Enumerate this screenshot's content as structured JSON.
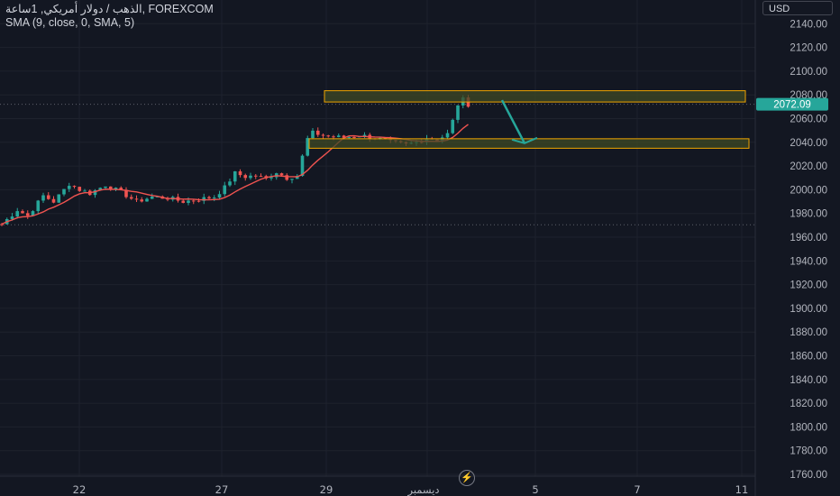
{
  "legend": {
    "line1": "الذهب / دولار أمريكي, 1ساعة, FOREXCOM",
    "line2": "SMA (9, close, 0, SMA, 5)"
  },
  "currency_label": "USD",
  "colors": {
    "background": "#131722",
    "up": "#26a69a",
    "down": "#ef5350",
    "sma": "#ef5350",
    "zone_border": "#f0a500",
    "zone_fill": "#3f4a24",
    "arrow": "#26a69a",
    "grid": "#1e222d",
    "axis_text": "#b2b5be"
  },
  "chart_data": {
    "type": "candlestick",
    "y_axis_ticks": [
      2140,
      2120,
      2100,
      2080,
      2060,
      2040,
      2020,
      2000,
      1980,
      1960,
      1940,
      1920,
      1900,
      1880,
      1860,
      1840,
      1820,
      1800,
      1780,
      1760
    ],
    "y_tick_labels": [
      "2140.00",
      "2120.00",
      "2100.00",
      "2080.00",
      "2060.00",
      "2040.00",
      "2020.00",
      "2000.00",
      "1980.00",
      "1960.00",
      "1940.00",
      "1920.00",
      "1900.00",
      "1880.00",
      "1860.00",
      "1840.00",
      "1820.00",
      "1800.00",
      "1780.00",
      "1760.00"
    ],
    "ylim": [
      1758.5,
      2160
    ],
    "x_tick_labels": [
      "22",
      "27",
      "29",
      "ديسمبر",
      "5",
      "7",
      "11"
    ],
    "current_price": "2072.09",
    "current_price_value": 2072.09,
    "reference_low": 1970.5,
    "close_path": [
      [
        0,
        1971
      ],
      [
        3,
        1983
      ],
      [
        5,
        1978
      ],
      [
        8,
        1995
      ],
      [
        10,
        1990
      ],
      [
        13,
        2005
      ],
      [
        15,
        2000
      ],
      [
        17,
        1997
      ],
      [
        20,
        2004
      ],
      [
        23,
        1998
      ],
      [
        26,
        1990
      ],
      [
        29,
        1994
      ],
      [
        32,
        1993
      ],
      [
        35,
        1990
      ],
      [
        38,
        1992
      ],
      [
        41,
        1994
      ],
      [
        43,
        2002
      ],
      [
        45,
        2014
      ],
      [
        47,
        2011
      ],
      [
        49,
        2012
      ],
      [
        51,
        2009
      ],
      [
        53,
        2015
      ],
      [
        55,
        2010
      ],
      [
        57,
        2012
      ],
      [
        58,
        2028
      ],
      [
        59,
        2043
      ],
      [
        60,
        2048
      ],
      [
        63,
        2045
      ],
      [
        66,
        2044
      ],
      [
        69,
        2046
      ],
      [
        72,
        2044
      ],
      [
        75,
        2040
      ],
      [
        78,
        2038
      ],
      [
        80,
        2040
      ],
      [
        82,
        2044
      ],
      [
        84,
        2042
      ],
      [
        86,
        2047
      ],
      [
        87,
        2058
      ],
      [
        88,
        2072
      ],
      [
        89,
        2076
      ],
      [
        90,
        2072
      ]
    ],
    "resistance_zone": {
      "y_top": 2083.5,
      "y_bottom": 2074
    },
    "support_zone": {
      "y_top": 2043,
      "y_bottom": 2035
    },
    "projection_arrow": {
      "from_price": 2074,
      "to_price": 2040
    }
  }
}
